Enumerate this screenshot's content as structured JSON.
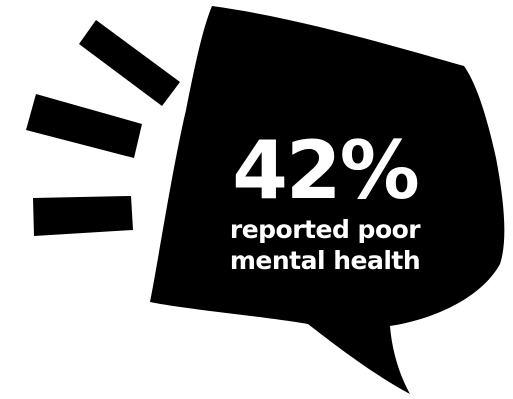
{
  "stat": {
    "value": "42%",
    "caption_line1": "reported poor",
    "caption_line2": "mental health"
  },
  "icons": {
    "bubble": "speech-bubble-icon",
    "lines": "emphasis-lines-icon"
  },
  "colors": {
    "bubble": "#000000",
    "text": "#ffffff",
    "background": "#ffffff"
  }
}
